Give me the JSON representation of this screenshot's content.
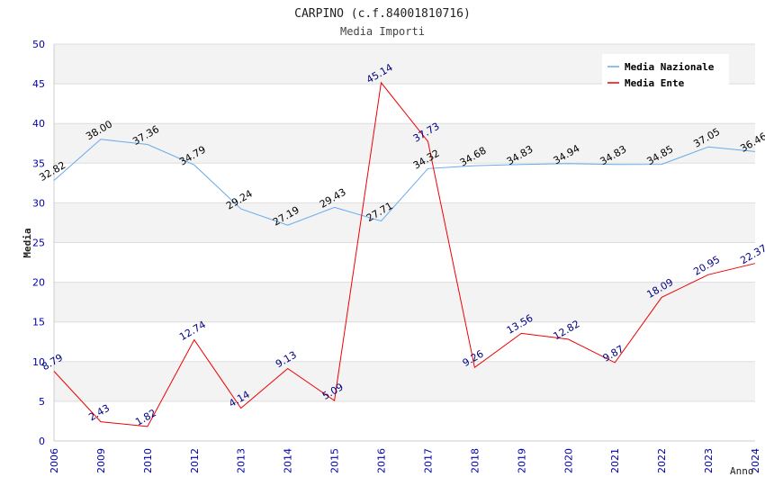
{
  "chart_data": {
    "type": "line",
    "title": "CARPINO (c.f.84001810716)",
    "subtitle": "Media Importi",
    "xlabel": "Anno",
    "ylabel": "Media",
    "ylim": [
      0,
      50
    ],
    "yticks": [
      0,
      5,
      10,
      15,
      20,
      25,
      30,
      35,
      40,
      45,
      50
    ],
    "categories": [
      "2006",
      "2009",
      "2010",
      "2012",
      "2013",
      "2014",
      "2015",
      "2016",
      "2017",
      "2018",
      "2019",
      "2020",
      "2021",
      "2022",
      "2023",
      "2024"
    ],
    "legend_position": "top-right",
    "series": [
      {
        "name": "Media Nazionale",
        "color": "#66aaee",
        "label_color": "#000000",
        "values": [
          32.82,
          38.0,
          37.36,
          34.79,
          29.24,
          27.19,
          29.43,
          27.71,
          34.32,
          34.68,
          34.83,
          34.94,
          34.83,
          34.85,
          37.05,
          36.46
        ],
        "labels": [
          "32.82",
          "38.00",
          "37.36",
          "34.79",
          "29.24",
          "27.19",
          "29.43",
          "27.71",
          "34.32",
          "34.68",
          "34.83",
          "34.94",
          "34.83",
          "34.85",
          "37.05",
          "36.46"
        ]
      },
      {
        "name": "Media Ente",
        "color": "#ee0000",
        "label_color": "#000080",
        "values": [
          8.79,
          2.43,
          1.82,
          12.74,
          4.14,
          9.13,
          5.09,
          45.14,
          37.73,
          9.26,
          13.56,
          12.82,
          9.87,
          18.09,
          20.95,
          22.37
        ],
        "labels": [
          "8.79",
          "2.43",
          "1.82",
          "12.74",
          "4.14",
          "9.13",
          "5.09",
          "45.14",
          "37.73",
          "9.26",
          "13.56",
          "12.82",
          "9.87",
          "18.09",
          "20.95",
          "22.37"
        ]
      }
    ],
    "colors": {
      "band": "#f3f3f3",
      "grid": "#dddddd",
      "tick_text": "#0000aa",
      "text": "#333333"
    }
  }
}
